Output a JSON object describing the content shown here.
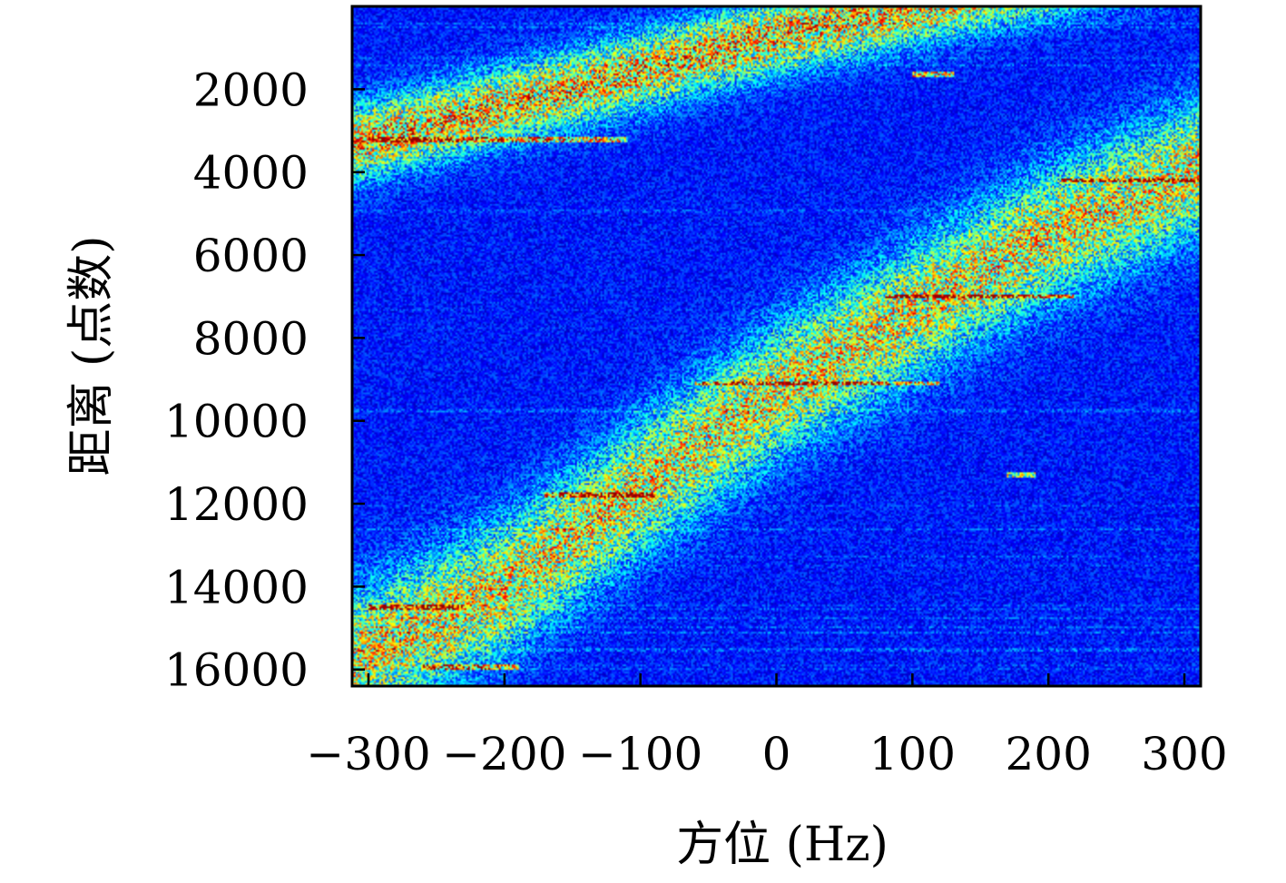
{
  "chart_data": {
    "type": "heatmap",
    "title": "",
    "xlabel": "方位 (Hz)",
    "ylabel": "距离 (点数)",
    "xlim": [
      -312,
      312
    ],
    "ylim": [
      16400,
      0
    ],
    "x_ticks": [
      {
        "value": -300,
        "label": "−300"
      },
      {
        "value": -200,
        "label": "−200"
      },
      {
        "value": -100,
        "label": "−100"
      },
      {
        "value": 0,
        "label": "0"
      },
      {
        "value": 100,
        "label": "100"
      },
      {
        "value": 200,
        "label": "200"
      },
      {
        "value": 300,
        "label": "300"
      }
    ],
    "y_ticks": [
      {
        "value": 2000,
        "label": "2000"
      },
      {
        "value": 4000,
        "label": "4000"
      },
      {
        "value": 6000,
        "label": "6000"
      },
      {
        "value": 8000,
        "label": "8000"
      },
      {
        "value": 10000,
        "label": "10000"
      },
      {
        "value": 12000,
        "label": "12000"
      },
      {
        "value": 14000,
        "label": "14000"
      },
      {
        "value": 16000,
        "label": "16000"
      }
    ],
    "colormap": "jet",
    "background_color": "#0a2bd6",
    "bands": [
      {
        "name": "upper",
        "x": [
          -312,
          -150,
          0,
          100
        ],
        "y": [
          3300,
          2000,
          700,
          0
        ],
        "width": 1300,
        "intensity": 0.62
      },
      {
        "name": "lower",
        "x": [
          -312,
          -200,
          -100,
          0,
          100,
          200,
          312
        ],
        "y": [
          15800,
          14000,
          11600,
          9300,
          7400,
          5500,
          3900
        ],
        "width": 2300,
        "intensity": 0.55
      }
    ],
    "streaks": [
      {
        "y": 3200,
        "x0": -300,
        "x1": -110,
        "intensity": 0.85
      },
      {
        "y": 4200,
        "x0": 210,
        "x1": 312,
        "intensity": 0.9
      },
      {
        "y": 7000,
        "x0": 80,
        "x1": 220,
        "intensity": 0.9
      },
      {
        "y": 9100,
        "x0": -60,
        "x1": 120,
        "intensity": 0.7
      },
      {
        "y": 11800,
        "x0": -170,
        "x1": -90,
        "intensity": 0.8
      },
      {
        "y": 14500,
        "x0": -300,
        "x1": -230,
        "intensity": 0.85
      },
      {
        "y": 15950,
        "x0": -260,
        "x1": -190,
        "intensity": 0.8
      },
      {
        "y": 1650,
        "x0": 100,
        "x1": 130,
        "intensity": 0.95
      },
      {
        "y": 11300,
        "x0": 170,
        "x1": 190,
        "intensity": 0.75
      }
    ],
    "grid": false,
    "legend": "none"
  }
}
